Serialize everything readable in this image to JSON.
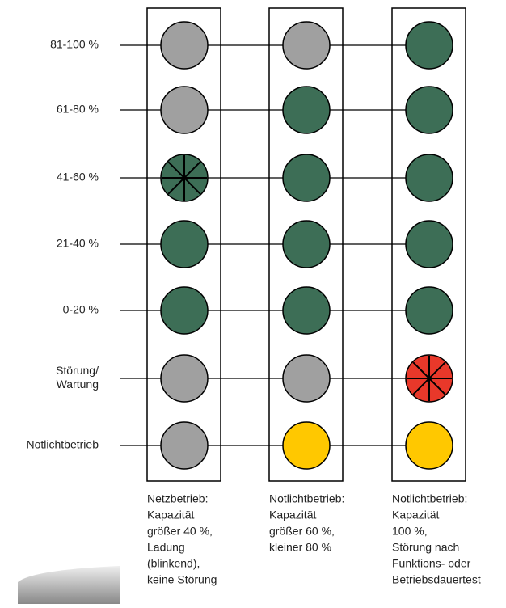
{
  "rows": [
    {
      "label": [
        "81-100 %"
      ]
    },
    {
      "label": [
        "61-80 %"
      ]
    },
    {
      "label": [
        "41-60 %"
      ]
    },
    {
      "label": [
        "21-40 %"
      ]
    },
    {
      "label": [
        "0-20 %"
      ]
    },
    {
      "label": [
        "Störung/",
        "Wartung"
      ]
    },
    {
      "label": [
        "Notlichtbetrieb"
      ]
    }
  ],
  "columns": [
    {
      "lamps": [
        "#a0a0a0",
        "#a0a0a0",
        "#3d6e56",
        "#3d6e56",
        "#3d6e56",
        "#a0a0a0",
        "#a0a0a0"
      ],
      "blink": [
        false,
        false,
        true,
        false,
        false,
        false,
        false
      ],
      "caption": [
        "Netzbetrieb:",
        "Kapazität",
        "größer 40 %,",
        "Ladung",
        "(blinkend),",
        "keine Störung"
      ]
    },
    {
      "lamps": [
        "#a0a0a0",
        "#3d6e56",
        "#3d6e56",
        "#3d6e56",
        "#3d6e56",
        "#a0a0a0",
        "#ffc800"
      ],
      "blink": [
        false,
        false,
        false,
        false,
        false,
        false,
        false
      ],
      "caption": [
        "Notlichtbetrieb:",
        "Kapazität",
        "größer 60 %,",
        "kleiner 80 %"
      ]
    },
    {
      "lamps": [
        "#3d6e56",
        "#3d6e56",
        "#3d6e56",
        "#3d6e56",
        "#3d6e56",
        "#e8382a",
        "#ffc800"
      ],
      "blink": [
        false,
        false,
        false,
        false,
        false,
        true,
        false
      ],
      "caption": [
        "Notlichtbetrieb:",
        "Kapazität",
        "100 %,",
        "Störung nach",
        "Funktions- oder",
        "Betriebsdauertest"
      ]
    }
  ]
}
